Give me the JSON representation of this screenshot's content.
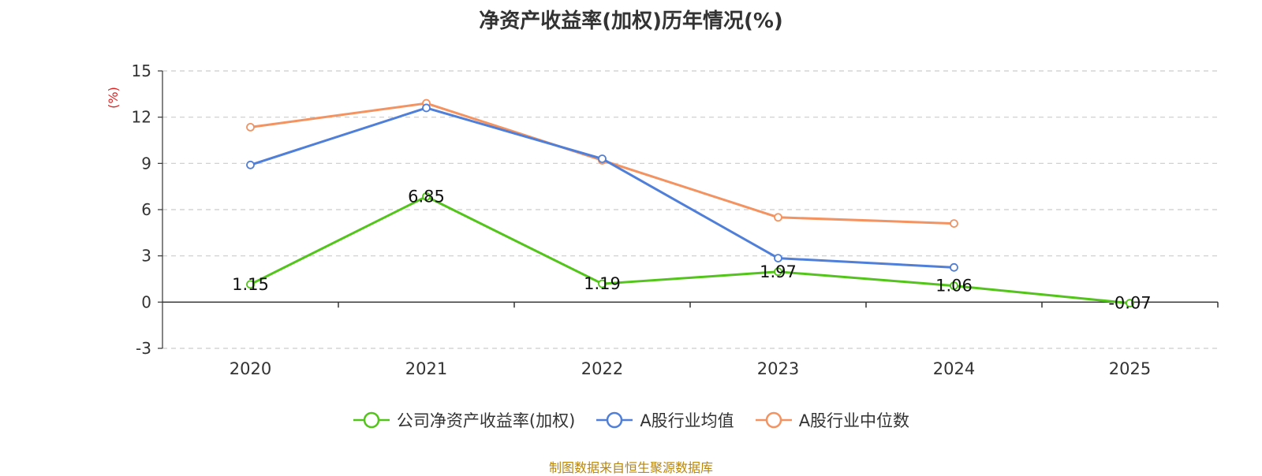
{
  "chart_data": {
    "type": "line",
    "title": "净资产收益率(加权)历年情况(%)",
    "ylabel": "(%)",
    "categories": [
      "2020",
      "2021",
      "2022",
      "2023",
      "2024",
      "2025"
    ],
    "ylim": [
      -3,
      15
    ],
    "yticks": [
      15,
      12,
      9,
      6,
      3,
      0,
      -3
    ],
    "grid": true,
    "legend_position": "bottom",
    "series": [
      {
        "name": "公司净资产收益率(加权)",
        "color": "#52c41a",
        "values": [
          1.15,
          6.85,
          1.19,
          1.97,
          1.06,
          -0.07
        ],
        "labels": [
          "1.15",
          "6.85",
          "1.19",
          "1.97",
          "1.06",
          "-0.07"
        ]
      },
      {
        "name": "A股行业均值",
        "color": "#4f7fd8",
        "values": [
          8.9,
          12.6,
          9.3,
          2.85,
          2.25,
          null
        ]
      },
      {
        "name": "A股行业中位数",
        "color": "#f39361",
        "values": [
          11.35,
          12.9,
          9.2,
          5.5,
          5.1,
          null
        ]
      }
    ]
  },
  "footer": {
    "source": "制图数据来自恒生聚源数据库"
  }
}
